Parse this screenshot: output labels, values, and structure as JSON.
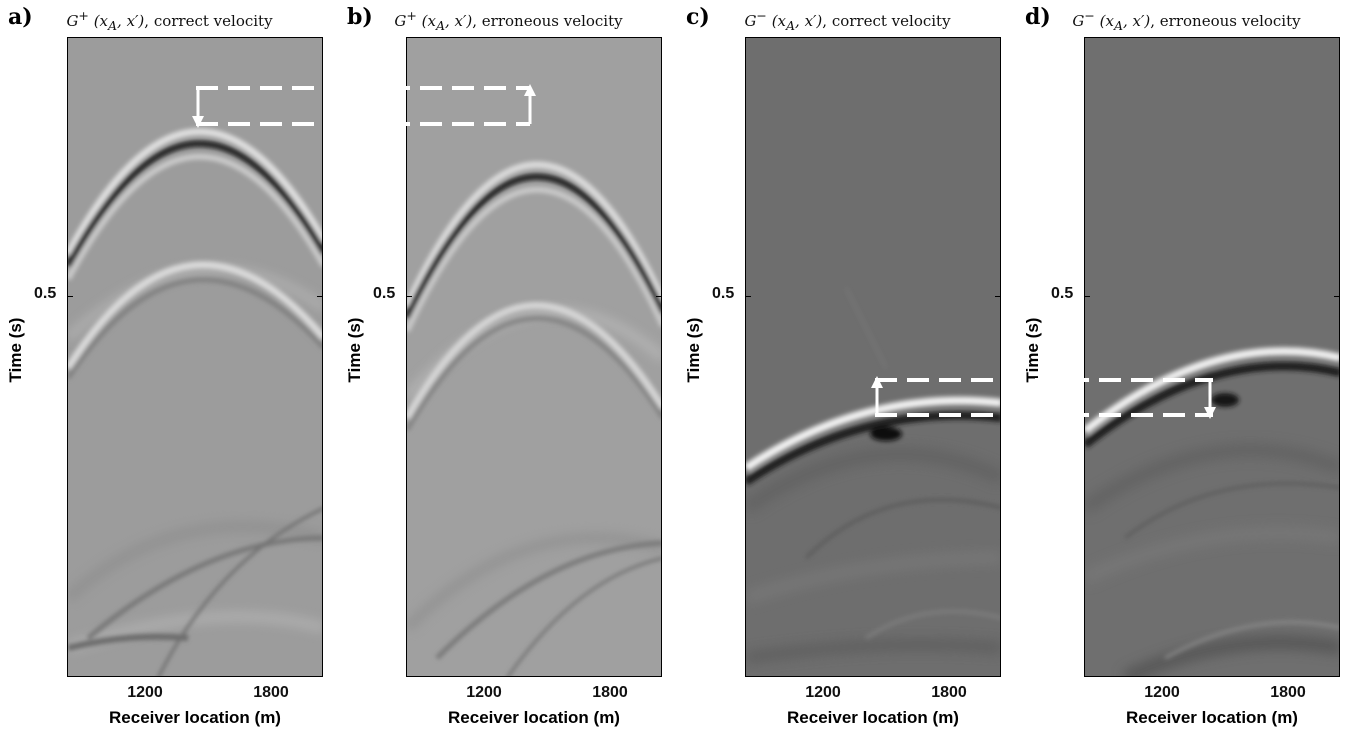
{
  "panels": [
    {
      "label": "a)",
      "title_func": "G",
      "title_sup": "+",
      "title_args": "(x",
      "title_sub": "A",
      "title_rest": ", x′)",
      "title_text": ", correct velocity",
      "yaxis_label": "Time (s)",
      "ytick": "0.5",
      "xticks": [
        "1200",
        "1800"
      ],
      "xaxis_label": "Receiver location (m)"
    },
    {
      "label": "b)",
      "title_func": "G",
      "title_sup": "+",
      "title_args": "(x",
      "title_sub": "A",
      "title_rest": ", x′)",
      "title_text": ", erroneous velocity",
      "yaxis_label": "Time (s)",
      "ytick": "0.5",
      "xticks": [
        "1200",
        "1800"
      ],
      "xaxis_label": "Receiver location (m)"
    },
    {
      "label": "c)",
      "title_func": "G",
      "title_sup": "−",
      "title_args": "(x",
      "title_sub": "A",
      "title_rest": ", x′)",
      "title_text": ", correct velocity",
      "yaxis_label": "Time (s)",
      "ytick": "0.5",
      "xticks": [
        "1200",
        "1800"
      ],
      "xaxis_label": "Receiver location (m)"
    },
    {
      "label": "d)",
      "title_func": "G",
      "title_sup": "−",
      "title_args": "(x",
      "title_sub": "A",
      "title_rest": ", x′)",
      "title_text": ", erroneous velocity",
      "yaxis_label": "Time (s)",
      "ytick": "0.5",
      "xticks": [
        "1200",
        "1800"
      ],
      "xaxis_label": "Receiver location (m)"
    }
  ],
  "colors": {
    "panel_ab_background": "#9c9c9c",
    "panel_cd_background": "#6e6e6e",
    "annotation": "#ffffff"
  }
}
